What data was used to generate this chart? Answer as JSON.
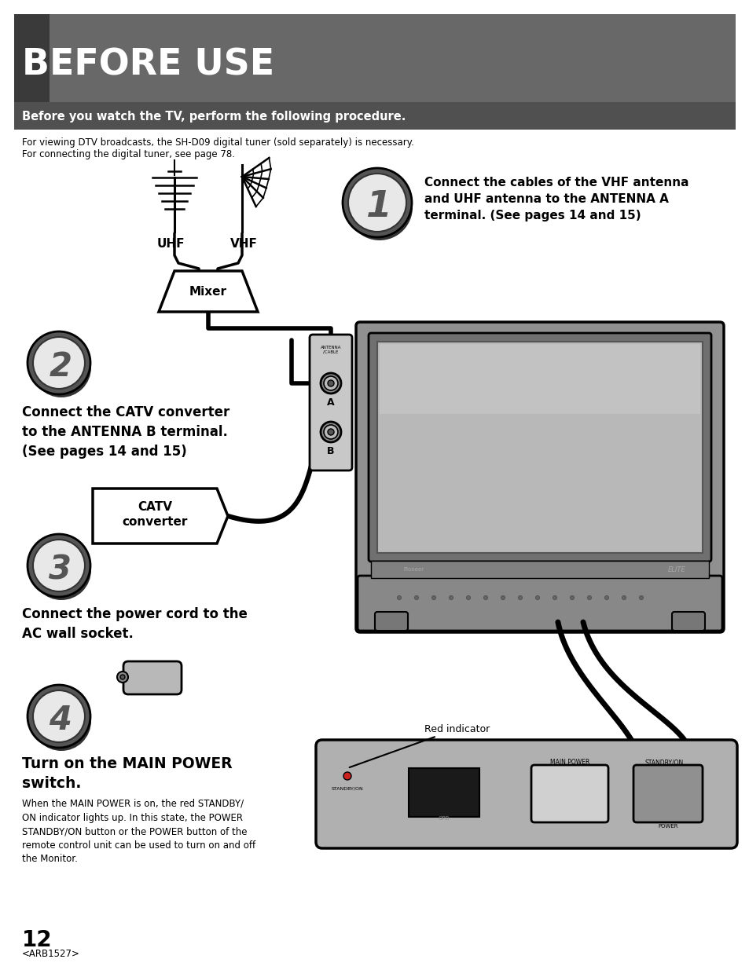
{
  "title": "BEFORE USE",
  "subtitle": "Before you watch the TV, perform the following procedure.",
  "title_bg": "#666666",
  "subtitle_bg": "#555555",
  "white": "#ffffff",
  "black": "#000000",
  "light_gray": "#cccccc",
  "med_gray": "#aaaaaa",
  "dark_gray": "#444444",
  "body_text1": "For viewing DTV broadcasts, the SH-D09 digital tuner (sold separately) is necessary.",
  "body_text2": "For connecting the digital tuner, see page 78.",
  "step1_text": "Connect the cables of the VHF antenna\nand UHF antenna to the ANTENNA A\nterminal. (See pages 14 and 15)",
  "step2_text": "Connect the CATV converter\nto the ANTENNA B terminal.\n(See pages 14 and 15)",
  "step3_text": "Connect the power cord to the\nAC wall socket.",
  "step4_text": "Turn on the MAIN POWER\nswitch.",
  "step4_body": "When the MAIN POWER is on, the red STANDBY/\nON indicator lights up. In this state, the POWER\nSTANDBY/ON button or the POWER button of the\nremote control unit can be used to turn on and off\nthe Monitor.",
  "page_number": "12",
  "code": "<ARB1527>",
  "red_indicator_label": "Red indicator"
}
